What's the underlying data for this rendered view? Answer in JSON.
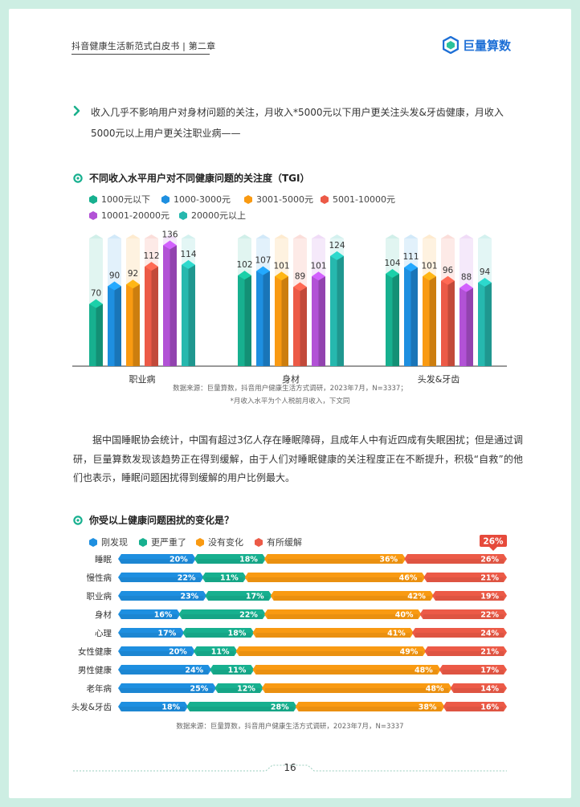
{
  "header": {
    "title": "抖音健康生活新范式白皮书 | 第二章",
    "logo_text": "巨量算数"
  },
  "intro": "收入几乎不影响用户对身材问题的关注，月收入*5000元以下用户更关注头发&牙齿健康，月收入5000元以上用户更关注职业病——",
  "chart1": {
    "title": "不同收入水平用户对不同健康问题的关注度（TGI）",
    "source": "数据来源：巨量算数，抖音用户健康生活方式调研，2023年7月，N=3337；",
    "footnote": "*月收入水平为个人税前月收入，下文同"
  },
  "paragraph": "据中国睡眠协会统计，中国有超过3亿人存在睡眠障碍，且成年人中有近四成有失眠困扰；但是通过调研，巨量算数发现该趋势正在得到缓解，由于人们对睡眠健康的关注程度正在不断提升，积极“自救”的他们也表示，睡眠问题困扰得到缓解的用户比例最大。",
  "chart2": {
    "title": "你受以上健康问题困扰的变化是？",
    "source": "数据来源：巨量算数，抖音用户健康生活方式调研，2023年7月，N=3337",
    "highlight": "26%"
  },
  "page_number": "16",
  "chart_data": [
    {
      "type": "bar",
      "title": "不同收入水平用户对不同健康问题的关注度（TGI）",
      "categories": [
        "职业病",
        "身材",
        "头发&牙齿"
      ],
      "series": [
        {
          "name": "1000元以下",
          "color": "#17b08f",
          "values": [
            70,
            102,
            104
          ]
        },
        {
          "name": "1000-3000元",
          "color": "#1e8fe0",
          "values": [
            90,
            107,
            111
          ]
        },
        {
          "name": "3001-5000元",
          "color": "#f99a12",
          "values": [
            92,
            101,
            101
          ]
        },
        {
          "name": "5001-10000元",
          "color": "#ec5a47",
          "values": [
            112,
            89,
            96
          ]
        },
        {
          "name": "10001-20000元",
          "color": "#b252d6",
          "values": [
            136,
            101,
            88
          ]
        },
        {
          "name": "20000元以上",
          "color": "#26b8ae",
          "values": [
            114,
            124,
            94
          ]
        }
      ],
      "ylim": [
        0,
        160
      ]
    },
    {
      "type": "bar",
      "stacked": true,
      "orientation": "horizontal",
      "title": "你受以上健康问题困扰的变化是？",
      "categories": [
        "睡眠",
        "慢性病",
        "职业病",
        "身材",
        "心理",
        "女性健康",
        "男性健康",
        "老年病",
        "头发&牙齿"
      ],
      "series": [
        {
          "name": "刚发现",
          "color": "#1e8fe0",
          "values": [
            20,
            22,
            23,
            16,
            17,
            20,
            24,
            25,
            18
          ]
        },
        {
          "name": "更严重了",
          "color": "#17b08f",
          "values": [
            18,
            11,
            17,
            22,
            18,
            11,
            11,
            12,
            28
          ]
        },
        {
          "name": "没有变化",
          "color": "#f99a12",
          "values": [
            36,
            46,
            42,
            40,
            41,
            49,
            48,
            48,
            38
          ]
        },
        {
          "name": "有所缓解",
          "color": "#ec5a47",
          "values": [
            26,
            21,
            19,
            22,
            24,
            21,
            17,
            14,
            16
          ]
        }
      ],
      "xlim": [
        0,
        100
      ]
    }
  ]
}
